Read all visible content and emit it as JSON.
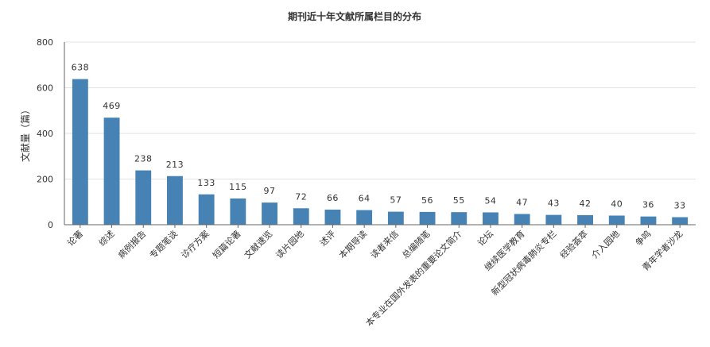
{
  "chart_data": {
    "type": "bar",
    "title": "期刊近十年文献所属栏目的分布",
    "xlabel": "",
    "ylabel": "文献量（篇）",
    "ylim": [
      0,
      800
    ],
    "yticks": [
      0,
      200,
      400,
      600,
      800
    ],
    "grid": true,
    "bar_color": "#4682b4",
    "categories": [
      "论著",
      "综述",
      "病例报告",
      "专题笔谈",
      "诊疗方案",
      "短篇论著",
      "文献速览",
      "读片园地",
      "述评",
      "本期导读",
      "读者来信",
      "总编随笔",
      "本专业在国外发表的重要论文简介",
      "论坛",
      "继续医学教育",
      "新型冠状病毒肺炎专栏",
      "经验荟萃",
      "介入园地",
      "争鸣",
      "青年学者沙龙"
    ],
    "values": [
      638,
      469,
      238,
      213,
      133,
      115,
      97,
      72,
      66,
      64,
      57,
      56,
      55,
      54,
      47,
      43,
      42,
      40,
      36,
      33
    ]
  }
}
